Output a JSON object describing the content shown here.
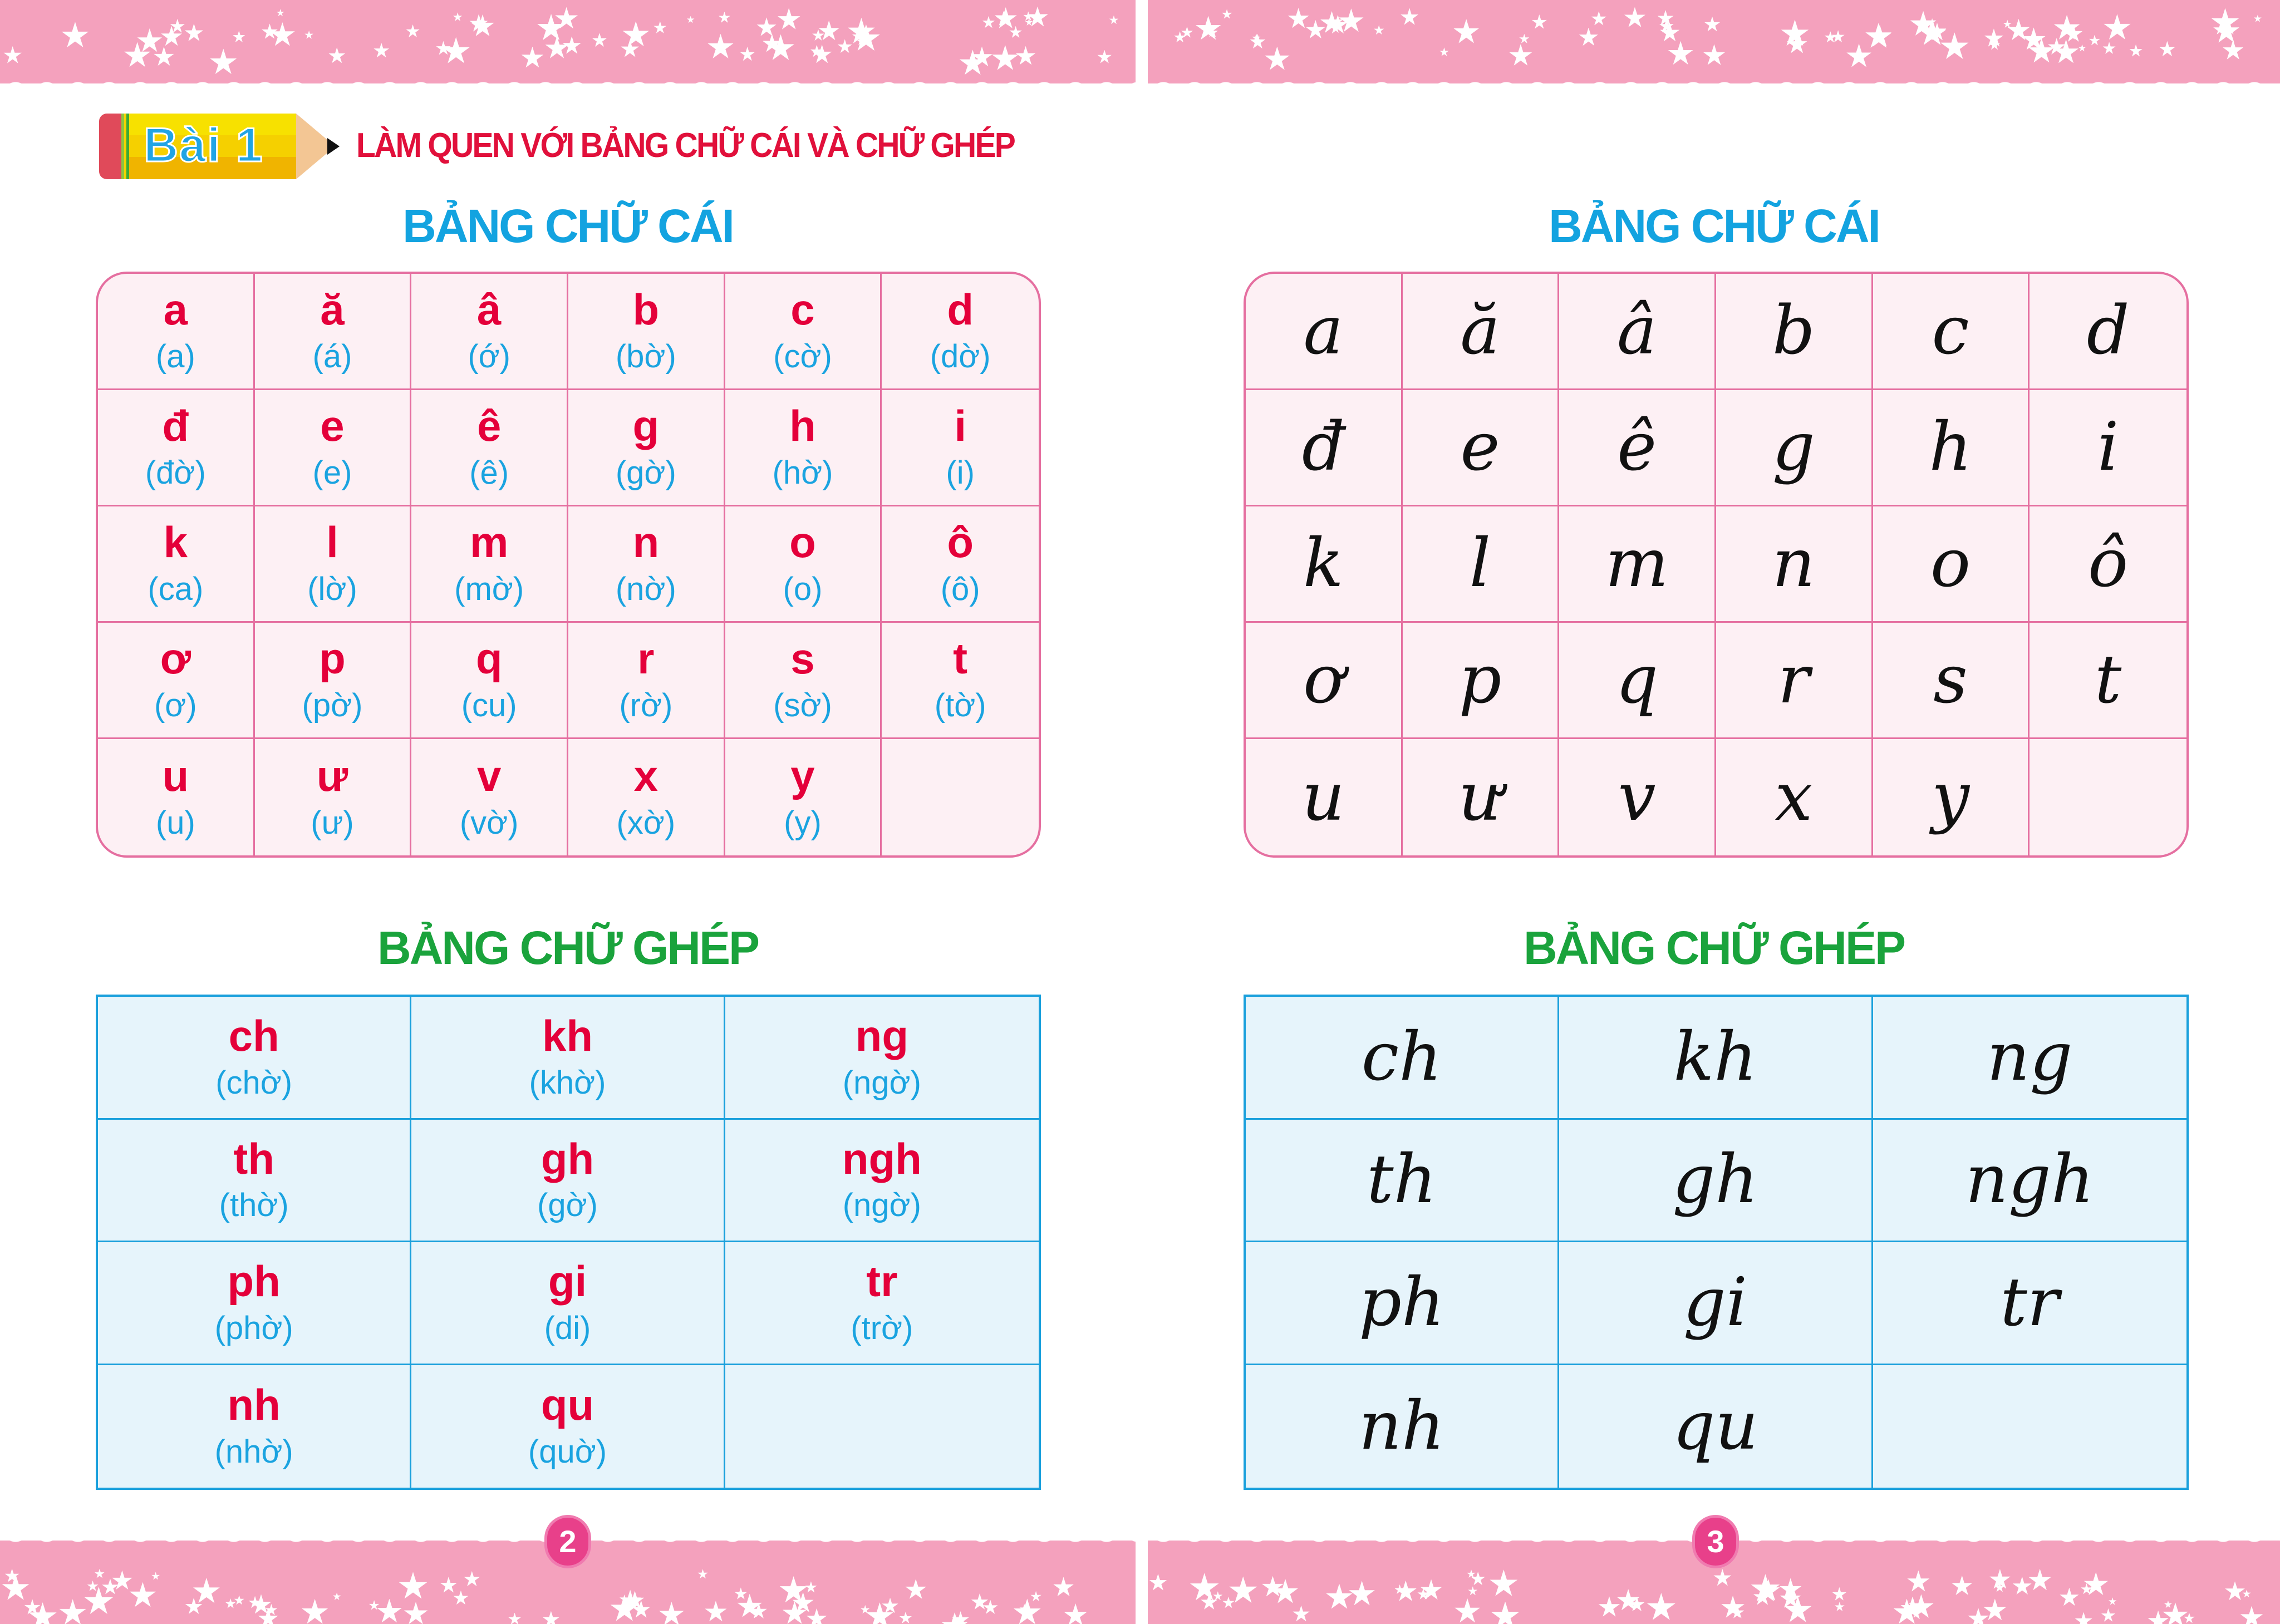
{
  "colors": {
    "band": "#f4a1bd",
    "letter_red": "#e4003a",
    "pron_blue": "#1aa3e0",
    "heading_blue": "#13a3e0",
    "heading_green": "#1aa33c",
    "alpha_border": "#e56fa0",
    "ghep_border": "#1aa0dc"
  },
  "left_page": {
    "lesson_badge": "Bài 1",
    "lesson_title": "LÀM QUEN VỚI BẢNG CHỮ CÁI VÀ CHỮ GHÉP",
    "alphabet_heading": "BẢNG CHỮ CÁI",
    "alphabet": [
      {
        "l": "a",
        "p": "(a)"
      },
      {
        "l": "ă",
        "p": "(á)"
      },
      {
        "l": "â",
        "p": "(ớ)"
      },
      {
        "l": "b",
        "p": "(bờ)"
      },
      {
        "l": "c",
        "p": "(cờ)"
      },
      {
        "l": "d",
        "p": "(dờ)"
      },
      {
        "l": "đ",
        "p": "(đờ)"
      },
      {
        "l": "e",
        "p": "(e)"
      },
      {
        "l": "ê",
        "p": "(ê)"
      },
      {
        "l": "g",
        "p": "(gờ)"
      },
      {
        "l": "h",
        "p": "(hờ)"
      },
      {
        "l": "i",
        "p": "(i)"
      },
      {
        "l": "k",
        "p": "(ca)"
      },
      {
        "l": "l",
        "p": "(lờ)"
      },
      {
        "l": "m",
        "p": "(mờ)"
      },
      {
        "l": "n",
        "p": "(nờ)"
      },
      {
        "l": "o",
        "p": "(o)"
      },
      {
        "l": "ô",
        "p": "(ô)"
      },
      {
        "l": "ơ",
        "p": "(ơ)"
      },
      {
        "l": "p",
        "p": "(pờ)"
      },
      {
        "l": "q",
        "p": "(cu)"
      },
      {
        "l": "r",
        "p": "(rờ)"
      },
      {
        "l": "s",
        "p": "(sờ)"
      },
      {
        "l": "t",
        "p": "(tờ)"
      },
      {
        "l": "u",
        "p": "(u)"
      },
      {
        "l": "ư",
        "p": "(ư)"
      },
      {
        "l": "v",
        "p": "(vờ)"
      },
      {
        "l": "x",
        "p": "(xờ)"
      },
      {
        "l": "y",
        "p": "(y)"
      },
      {
        "l": "",
        "p": ""
      }
    ],
    "digraph_heading": "BẢNG CHỮ GHÉP",
    "digraphs": [
      {
        "l": "ch",
        "p": "(chờ)"
      },
      {
        "l": "kh",
        "p": "(khờ)"
      },
      {
        "l": "ng",
        "p": "(ngờ)"
      },
      {
        "l": "th",
        "p": "(thờ)"
      },
      {
        "l": "gh",
        "p": "(gờ)"
      },
      {
        "l": "ngh",
        "p": "(ngờ)"
      },
      {
        "l": "ph",
        "p": "(phờ)"
      },
      {
        "l": "gi",
        "p": "(di)"
      },
      {
        "l": "tr",
        "p": "(trờ)"
      },
      {
        "l": "nh",
        "p": "(nhờ)"
      },
      {
        "l": "qu",
        "p": "(quờ)"
      },
      {
        "l": "",
        "p": ""
      }
    ],
    "page_number": "2"
  },
  "right_page": {
    "alphabet_heading": "BẢNG CHỮ CÁI",
    "alphabet": [
      "a",
      "ă",
      "â",
      "b",
      "c",
      "d",
      "đ",
      "e",
      "ê",
      "g",
      "h",
      "i",
      "k",
      "l",
      "m",
      "n",
      "o",
      "ô",
      "ơ",
      "p",
      "q",
      "r",
      "s",
      "t",
      "u",
      "ư",
      "v",
      "x",
      "y",
      ""
    ],
    "digraph_heading": "BẢNG CHỮ GHÉP",
    "digraphs": [
      "ch",
      "kh",
      "ng",
      "th",
      "gh",
      "ngh",
      "ph",
      "gi",
      "tr",
      "nh",
      "qu",
      ""
    ],
    "page_number": "3"
  }
}
